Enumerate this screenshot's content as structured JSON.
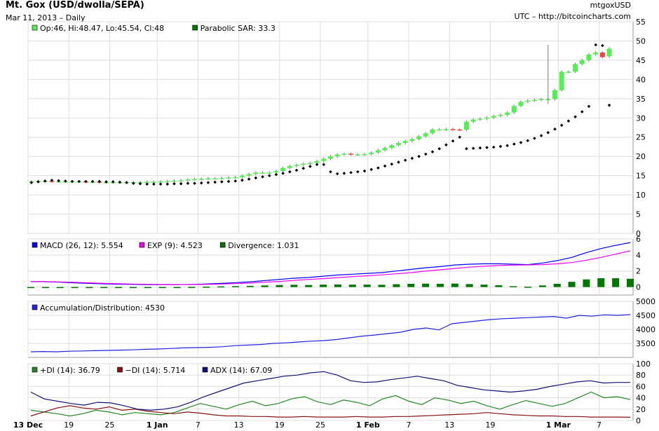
{
  "header": {
    "title": "Mt. Gox (USD/dwolla/SEPA)",
    "subtitle": "Mar 11, 2013 – Daily",
    "source_id": "mtgoxUSD",
    "timezone_site": "UTC – http://bitcoincharts.com"
  },
  "colors": {
    "up": "#55ee55",
    "down": "#ee4444",
    "sar": "#000000",
    "grid": "#dddddd",
    "macd": "#0000ee",
    "exp": "#ee00ee",
    "divergence": "#007700",
    "accdist": "#2222dd",
    "plus_di": "#228822",
    "minus_di": "#881111",
    "adx": "#111177"
  },
  "chart_data": [
    {
      "type": "candlestick",
      "legend": [
        "Op:46, Hi:48.47, Lo:45.54, Cl:48",
        "Parabolic SAR: 33.3"
      ],
      "ylim": [
        0,
        55
      ],
      "y_ticks": [
        "0",
        "5",
        "10",
        "15",
        "20",
        "25",
        "30",
        "35",
        "40",
        "45",
        "50",
        "55"
      ],
      "x_ticks": [
        "13 Dec",
        "19",
        "25",
        "1 Jan",
        "7",
        "13",
        "19",
        "25",
        "1 Feb",
        "7",
        "13",
        "19",
        "1 Mar",
        "7"
      ],
      "x_tick_days": [
        0,
        6,
        12,
        19,
        25,
        31,
        37,
        43,
        50,
        56,
        62,
        68,
        78,
        84
      ],
      "days": 89,
      "close": [
        13.5,
        13.6,
        13.6,
        13.5,
        13.5,
        13.5,
        13.5,
        13.5,
        13.4,
        13.4,
        13.3,
        13.3,
        13.3,
        13.3,
        13.3,
        13.3,
        13.3,
        13.4,
        13.4,
        13.5,
        13.6,
        13.7,
        13.8,
        14.0,
        14.1,
        14.2,
        14.3,
        14.3,
        14.4,
        14.5,
        14.6,
        15.0,
        15.4,
        15.8,
        15.8,
        15.8,
        16.2,
        17.0,
        17.5,
        17.8,
        18.1,
        18.3,
        18.8,
        19.4,
        20.0,
        20.5,
        20.7,
        20.5,
        20.5,
        20.6,
        21.0,
        21.6,
        22.2,
        22.9,
        23.5,
        24.0,
        24.5,
        25.2,
        26.0,
        27.0,
        27.0,
        27.1,
        27.0,
        26.9,
        29.0,
        29.6,
        29.8,
        30.1,
        30.5,
        30.8,
        31.4,
        33.1,
        34.2,
        34.5,
        34.7,
        34.9,
        34.9,
        37.2,
        42.0,
        42.0,
        44.0,
        45.0,
        46.5,
        47.0,
        45.8,
        48.0
      ],
      "open": [
        13.4,
        13.5,
        13.6,
        13.6,
        13.5,
        13.5,
        13.5,
        13.5,
        13.5,
        13.4,
        13.4,
        13.3,
        13.3,
        13.3,
        13.3,
        13.3,
        13.3,
        13.3,
        13.4,
        13.4,
        13.5,
        13.6,
        13.7,
        13.8,
        14.0,
        14.1,
        14.2,
        14.3,
        14.3,
        14.4,
        14.5,
        14.6,
        15.0,
        15.4,
        15.8,
        15.8,
        15.8,
        16.2,
        17.0,
        17.5,
        17.8,
        18.1,
        18.3,
        18.8,
        19.4,
        20.0,
        20.5,
        20.7,
        20.5,
        20.5,
        20.6,
        21.0,
        21.6,
        22.2,
        22.9,
        23.5,
        24.0,
        24.5,
        25.2,
        26.0,
        27.0,
        27.0,
        27.1,
        27.0,
        26.9,
        29.0,
        29.6,
        29.8,
        30.1,
        30.5,
        30.8,
        31.4,
        33.1,
        34.2,
        34.5,
        34.7,
        34.9,
        34.9,
        37.2,
        42.0,
        42.0,
        44.0,
        45.0,
        46.5,
        47.0,
        46.0
      ],
      "sar": [
        13.2,
        13.4,
        13.6,
        13.8,
        13.7,
        13.6,
        13.5,
        13.5,
        13.5,
        13.5,
        13.5,
        13.4,
        13.4,
        13.3,
        13.2,
        13.0,
        12.9,
        12.8,
        12.8,
        12.8,
        12.8,
        12.9,
        12.9,
        13.0,
        13.0,
        13.1,
        13.2,
        13.3,
        13.4,
        13.5,
        13.6,
        13.8,
        14.1,
        14.4,
        14.7,
        15.0,
        15.3,
        15.6,
        16.0,
        16.4,
        16.9,
        17.4,
        17.9,
        17.9,
        16.0,
        15.5,
        15.6,
        15.8,
        16.0,
        16.2,
        16.6,
        17.0,
        17.5,
        18.0,
        18.5,
        19.0,
        19.5,
        20.0,
        20.6,
        21.2,
        22.0,
        23.0,
        24.0,
        25.0,
        22.0,
        22.1,
        22.2,
        22.3,
        22.4,
        22.6,
        22.8,
        23.2,
        23.6,
        24.1,
        24.7,
        25.4,
        26.2,
        27.1,
        28.1,
        29.2,
        30.3,
        31.6,
        33.0,
        49.0,
        48.8,
        33.3
      ],
      "events": [
        {
          "day": 44,
          "label_sar": true
        },
        {
          "day": 57,
          "sar": 26.5
        },
        {
          "day": 76,
          "high": 49.0,
          "low": 33.6
        }
      ]
    },
    {
      "type": "line",
      "legend": [
        "MACD (26, 12): 5.554",
        "EXP (9): 4.523",
        "Divergence: 1.031"
      ],
      "ylim": [
        -1,
        6
      ],
      "y_ticks": [
        "0",
        "2",
        "4",
        "6"
      ],
      "series": [
        {
          "name": "MACD (26, 12)",
          "values": [
            0.7,
            0.66,
            0.6,
            0.52,
            0.45,
            0.4,
            0.36,
            0.33,
            0.3,
            0.3,
            0.3,
            0.33,
            0.38,
            0.45,
            0.55,
            0.65,
            0.8,
            0.95,
            1.1,
            1.2,
            1.35,
            1.5,
            1.6,
            1.7,
            1.8,
            2.0,
            2.2,
            2.4,
            2.55,
            2.75,
            2.85,
            2.9,
            2.9,
            2.85,
            2.8,
            3.0,
            3.3,
            3.7,
            4.3,
            4.8,
            5.2,
            5.554
          ]
        },
        {
          "name": "EXP (9)",
          "values": [
            0.7,
            0.68,
            0.64,
            0.58,
            0.52,
            0.46,
            0.41,
            0.37,
            0.34,
            0.32,
            0.31,
            0.31,
            0.33,
            0.37,
            0.43,
            0.5,
            0.6,
            0.7,
            0.82,
            0.95,
            1.05,
            1.18,
            1.3,
            1.4,
            1.52,
            1.65,
            1.8,
            1.98,
            2.15,
            2.32,
            2.48,
            2.6,
            2.68,
            2.74,
            2.76,
            2.8,
            2.9,
            3.05,
            3.35,
            3.7,
            4.1,
            4.523
          ]
        },
        {
          "name": "Divergence",
          "values": [
            0,
            0,
            -0.02,
            -0.05,
            -0.06,
            -0.06,
            -0.05,
            -0.04,
            -0.04,
            -0.02,
            -0.02,
            0.02,
            0.05,
            0.08,
            0.12,
            0.15,
            0.2,
            0.25,
            0.28,
            0.25,
            0.3,
            0.32,
            0.3,
            0.3,
            0.28,
            0.35,
            0.4,
            0.42,
            0.4,
            0.43,
            0.37,
            0.3,
            0.22,
            0.11,
            0.04,
            0.2,
            0.4,
            0.65,
            0.95,
            1.1,
            1.1,
            1.031
          ]
        }
      ]
    },
    {
      "type": "line",
      "legend": [
        "Accumulation/Distribution: 4530"
      ],
      "ylim": [
        3000,
        5000
      ],
      "y_ticks": [
        "3500",
        "4000",
        "4500",
        "5000"
      ],
      "series": [
        {
          "name": "Accumulation/Distribution",
          "values": [
            3200,
            3210,
            3200,
            3220,
            3230,
            3240,
            3250,
            3260,
            3270,
            3290,
            3300,
            3320,
            3340,
            3350,
            3360,
            3380,
            3420,
            3440,
            3460,
            3500,
            3520,
            3550,
            3580,
            3600,
            3640,
            3700,
            3760,
            3800,
            3850,
            3900,
            4000,
            4050,
            3980,
            4200,
            4250,
            4300,
            4350,
            4380,
            4400,
            4420,
            4440,
            4460,
            4400,
            4500,
            4470,
            4520,
            4500,
            4530
          ]
        }
      ]
    },
    {
      "type": "line",
      "legend": [
        "+DI (14): 36.79",
        "−DI (14): 5.714",
        "ADX (14): 67.09"
      ],
      "ylim": [
        0,
        100
      ],
      "y_ticks": [
        "0",
        "20",
        "40",
        "60",
        "80",
        "100"
      ],
      "series": [
        {
          "name": "+DI (14)",
          "values": [
            18,
            15,
            12,
            8,
            12,
            18,
            15,
            10,
            14,
            12,
            10,
            14,
            22,
            30,
            25,
            20,
            28,
            34,
            26,
            30,
            38,
            42,
            33,
            28,
            36,
            32,
            26,
            38,
            44,
            34,
            28,
            40,
            36,
            30,
            34,
            26,
            20,
            28,
            35,
            30,
            25,
            30,
            40,
            50,
            40,
            42,
            36.79
          ]
        },
        {
          "name": "−DI (14)",
          "values": [
            8,
            15,
            22,
            26,
            22,
            20,
            24,
            18,
            20,
            16,
            14,
            12,
            15,
            13,
            10,
            8,
            8,
            7,
            7,
            6,
            6,
            7,
            6,
            6,
            6,
            7,
            6,
            6,
            7,
            7,
            8,
            9,
            10,
            11,
            12,
            14,
            12,
            10,
            9,
            8,
            8,
            7,
            7,
            6,
            6,
            6,
            5.714
          ]
        },
        {
          "name": "ADX (14)",
          "values": [
            50,
            38,
            34,
            30,
            27,
            32,
            31,
            26,
            20,
            18,
            20,
            24,
            32,
            42,
            50,
            58,
            66,
            70,
            74,
            78,
            80,
            84,
            86,
            80,
            70,
            67,
            68,
            72,
            75,
            78,
            74,
            70,
            62,
            58,
            54,
            52,
            50,
            52,
            55,
            60,
            64,
            68,
            70,
            66,
            67,
            67.09
          ]
        }
      ]
    }
  ]
}
